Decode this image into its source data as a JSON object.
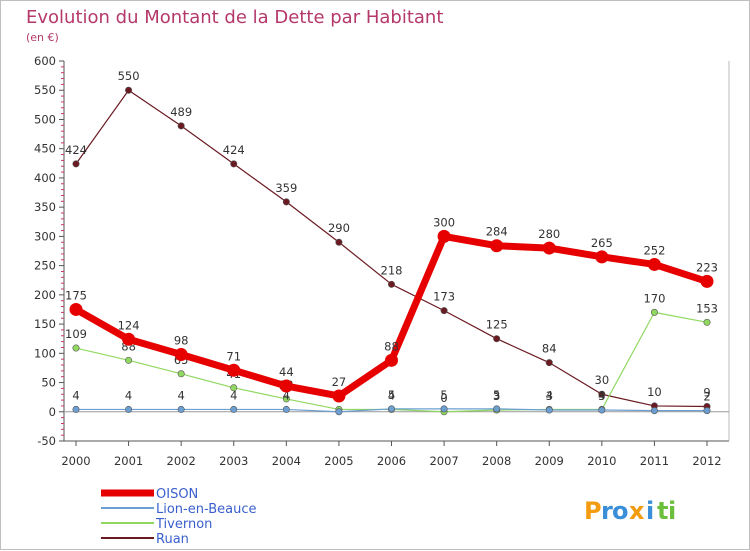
{
  "chart_data": {
    "type": "line",
    "title": "Evolution du Montant de la Dette par Habitant",
    "subtitle": "(en €)",
    "xlabel": "",
    "ylabel": "",
    "ylim": [
      -50,
      600
    ],
    "yticks": [
      "-50",
      "0",
      "50",
      "100",
      "150",
      "200",
      "250",
      "300",
      "350",
      "400",
      "450",
      "500",
      "550",
      "600"
    ],
    "categories": [
      "2000",
      "2001",
      "2002",
      "2003",
      "2004",
      "2005",
      "2006",
      "2007",
      "2008",
      "2009",
      "2010",
      "2011",
      "2012"
    ],
    "series": [
      {
        "name": "Ruan",
        "color": "#6b1a22",
        "values": [
          424,
          550,
          489,
          424,
          359,
          290,
          218,
          173,
          125,
          84,
          30,
          10,
          9
        ],
        "labels": [
          "424",
          "550",
          "489",
          "424",
          "359",
          "290",
          "218",
          "173",
          "125",
          "84",
          "30",
          "10",
          "9"
        ]
      },
      {
        "name": "Tivernon",
        "color": "#90d860",
        "values": [
          109,
          88,
          65,
          41,
          22,
          4,
          4,
          0,
          3,
          4,
          4,
          170,
          153
        ],
        "labels": [
          "109",
          "88",
          "65",
          "41",
          "22",
          "4",
          "4",
          "0",
          "3",
          "4",
          "4",
          "170",
          "153"
        ]
      },
      {
        "name": "Lion-en-Beauce",
        "color": "#6c9fd1",
        "values": [
          4,
          4,
          4,
          4,
          4,
          0,
          5,
          5,
          5,
          3,
          3,
          2,
          2
        ],
        "labels": [
          "4",
          "4",
          "4",
          "4",
          "4",
          "0",
          "5",
          "5",
          "5",
          "3",
          "3",
          "",
          "2"
        ]
      },
      {
        "name": "OISON",
        "color": "#e60000",
        "values": [
          175,
          124,
          98,
          71,
          44,
          27,
          88,
          300,
          284,
          280,
          265,
          252,
          223
        ],
        "labels": [
          "175",
          "124",
          "98",
          "71",
          "44",
          "27",
          "88",
          "300",
          "284",
          "280",
          "265",
          "252",
          "223"
        ]
      }
    ],
    "legend_order": [
      "OISON",
      "Lion-en-Beauce",
      "Tivernon",
      "Ruan"
    ],
    "legend_position": "bottom-left",
    "grid": false
  },
  "brand": {
    "letters": [
      "P",
      "r",
      "o",
      "x",
      "i",
      "t",
      "i"
    ],
    "colors": [
      "#f39c12",
      "#3a8fd8",
      "#3a8fd8",
      "#f39c12",
      "#3a8fd8",
      "#6cbf3c",
      "#6cbf3c"
    ]
  }
}
